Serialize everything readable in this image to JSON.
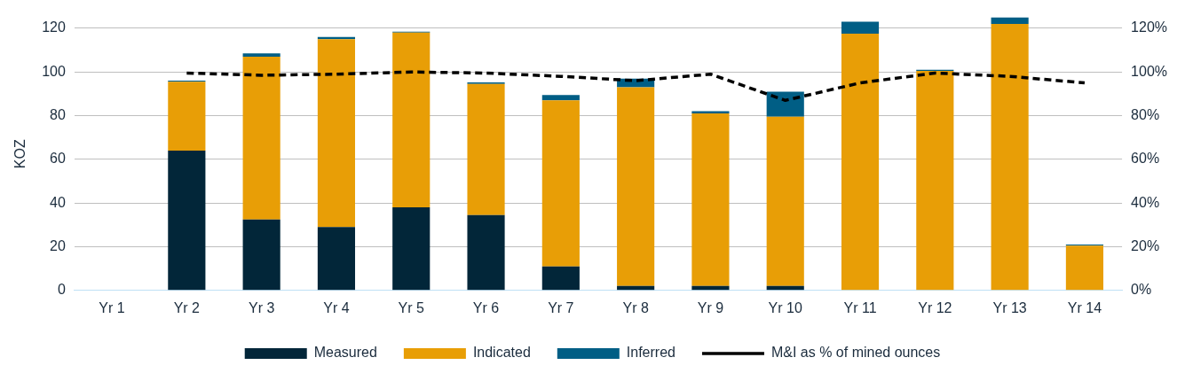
{
  "chart_data": {
    "type": "bar",
    "stacked": true,
    "ylabel": "KOZ",
    "categories": [
      "Yr 1",
      "Yr 2",
      "Yr 3",
      "Yr 4",
      "Yr 5",
      "Yr 6",
      "Yr 7",
      "Yr 8",
      "Yr 9",
      "Yr 10",
      "Yr 11",
      "Yr 12",
      "Yr 13",
      "Yr 14"
    ],
    "series": [
      {
        "name": "Measured",
        "color": "#022639",
        "values": [
          null,
          64,
          32.5,
          29,
          38,
          34.5,
          11,
          2,
          2,
          2,
          0,
          0,
          0,
          0
        ]
      },
      {
        "name": "Indicated",
        "color": "#e89e06",
        "values": [
          null,
          31.5,
          74.5,
          86,
          80,
          60,
          76,
          91,
          79,
          77.5,
          117.5,
          100.5,
          122,
          20.5
        ]
      },
      {
        "name": "Inferred",
        "color": "#005e85",
        "values": [
          null,
          0.5,
          1.5,
          1,
          0.5,
          0.7,
          2.5,
          4,
          1,
          11.5,
          5.5,
          0.5,
          3,
          0.5
        ]
      },
      {
        "name": "M&I as % of mined ounces",
        "type": "line",
        "axis": "y2",
        "color": "#000000",
        "line_style": "dashed",
        "marker": "none",
        "values": [
          null,
          99.5,
          98.5,
          99,
          100,
          99.5,
          98,
          96,
          99,
          87,
          95,
          99.5,
          98,
          95
        ]
      }
    ],
    "ylim": [
      0,
      125
    ],
    "yticks": [
      0,
      20,
      40,
      60,
      80,
      100,
      120
    ],
    "y2lim": [
      0,
      125
    ],
    "y2ticks": [
      {
        "value": 0,
        "label": "0%"
      },
      {
        "value": 20,
        "label": "20%"
      },
      {
        "value": 40,
        "label": "40%"
      },
      {
        "value": 60,
        "label": "60%"
      },
      {
        "value": 80,
        "label": "80%"
      },
      {
        "value": 100,
        "label": "100%"
      },
      {
        "value": 120,
        "label": "120%"
      }
    ],
    "grid": "y",
    "legend": "bottom"
  }
}
